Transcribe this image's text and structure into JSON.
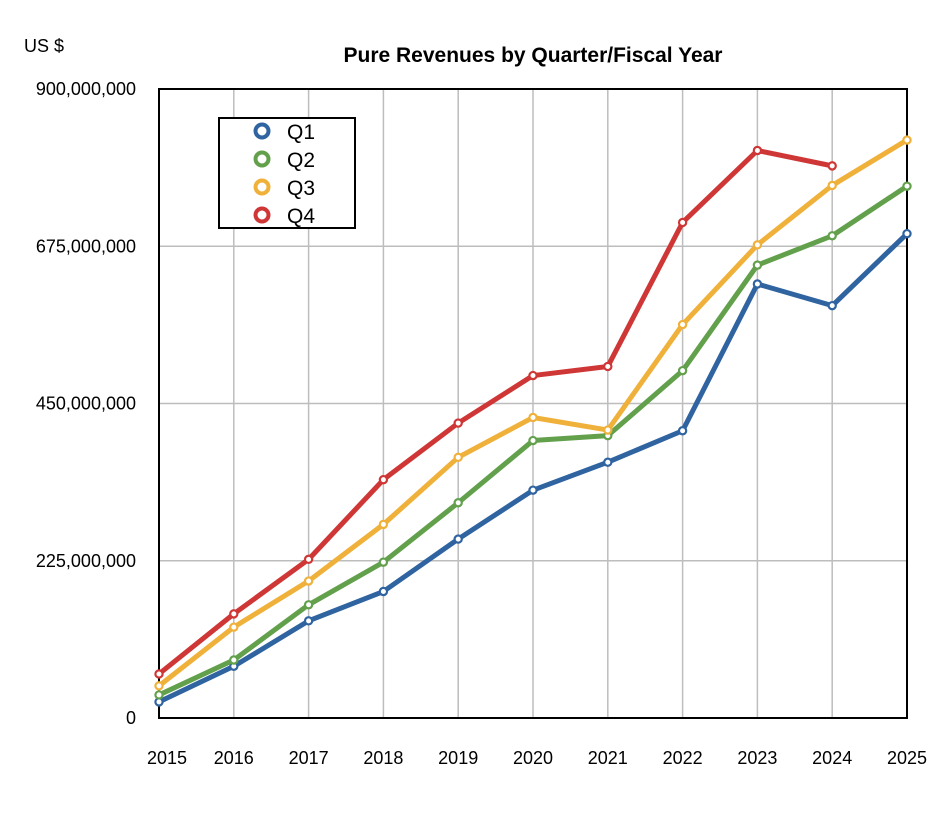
{
  "chart_data": {
    "type": "line",
    "title": "Pure Revenues by Quarter/Fiscal Year",
    "unit_label": "US $",
    "xlabel": "",
    "ylabel": "",
    "x": [
      "2015",
      "2016",
      "2017",
      "2018",
      "2019",
      "2020",
      "2021",
      "2022",
      "2023",
      "2024",
      "2025"
    ],
    "ylim": [
      0,
      900000000
    ],
    "yticks": [
      0,
      225000000,
      450000000,
      675000000,
      900000000
    ],
    "ytick_labels": [
      "0",
      "225,000,000",
      "450,000,000",
      "675,000,000",
      "900,000,000"
    ],
    "grid": true,
    "legend_position": "top-left",
    "series": [
      {
        "name": "Q1",
        "color": "#2f64a1",
        "values": [
          23000000,
          74000000,
          139000000,
          181000000,
          256000000,
          326000000,
          366000000,
          411000000,
          621000000,
          590000000,
          693000000
        ]
      },
      {
        "name": "Q2",
        "color": "#62a04c",
        "values": [
          33000000,
          83000000,
          162000000,
          223000000,
          308000000,
          397000000,
          404000000,
          497000000,
          648000000,
          690000000,
          761000000
        ]
      },
      {
        "name": "Q3",
        "color": "#f0b13b",
        "values": [
          46000000,
          130000000,
          196000000,
          277000000,
          373000000,
          430000000,
          412000000,
          563000000,
          677000000,
          762000000,
          827000000
        ]
      },
      {
        "name": "Q4",
        "color": "#cf3736",
        "values": [
          63000000,
          149000000,
          227000000,
          341000000,
          422000000,
          490000000,
          503000000,
          709000000,
          812000000,
          790000000,
          null
        ]
      }
    ]
  }
}
